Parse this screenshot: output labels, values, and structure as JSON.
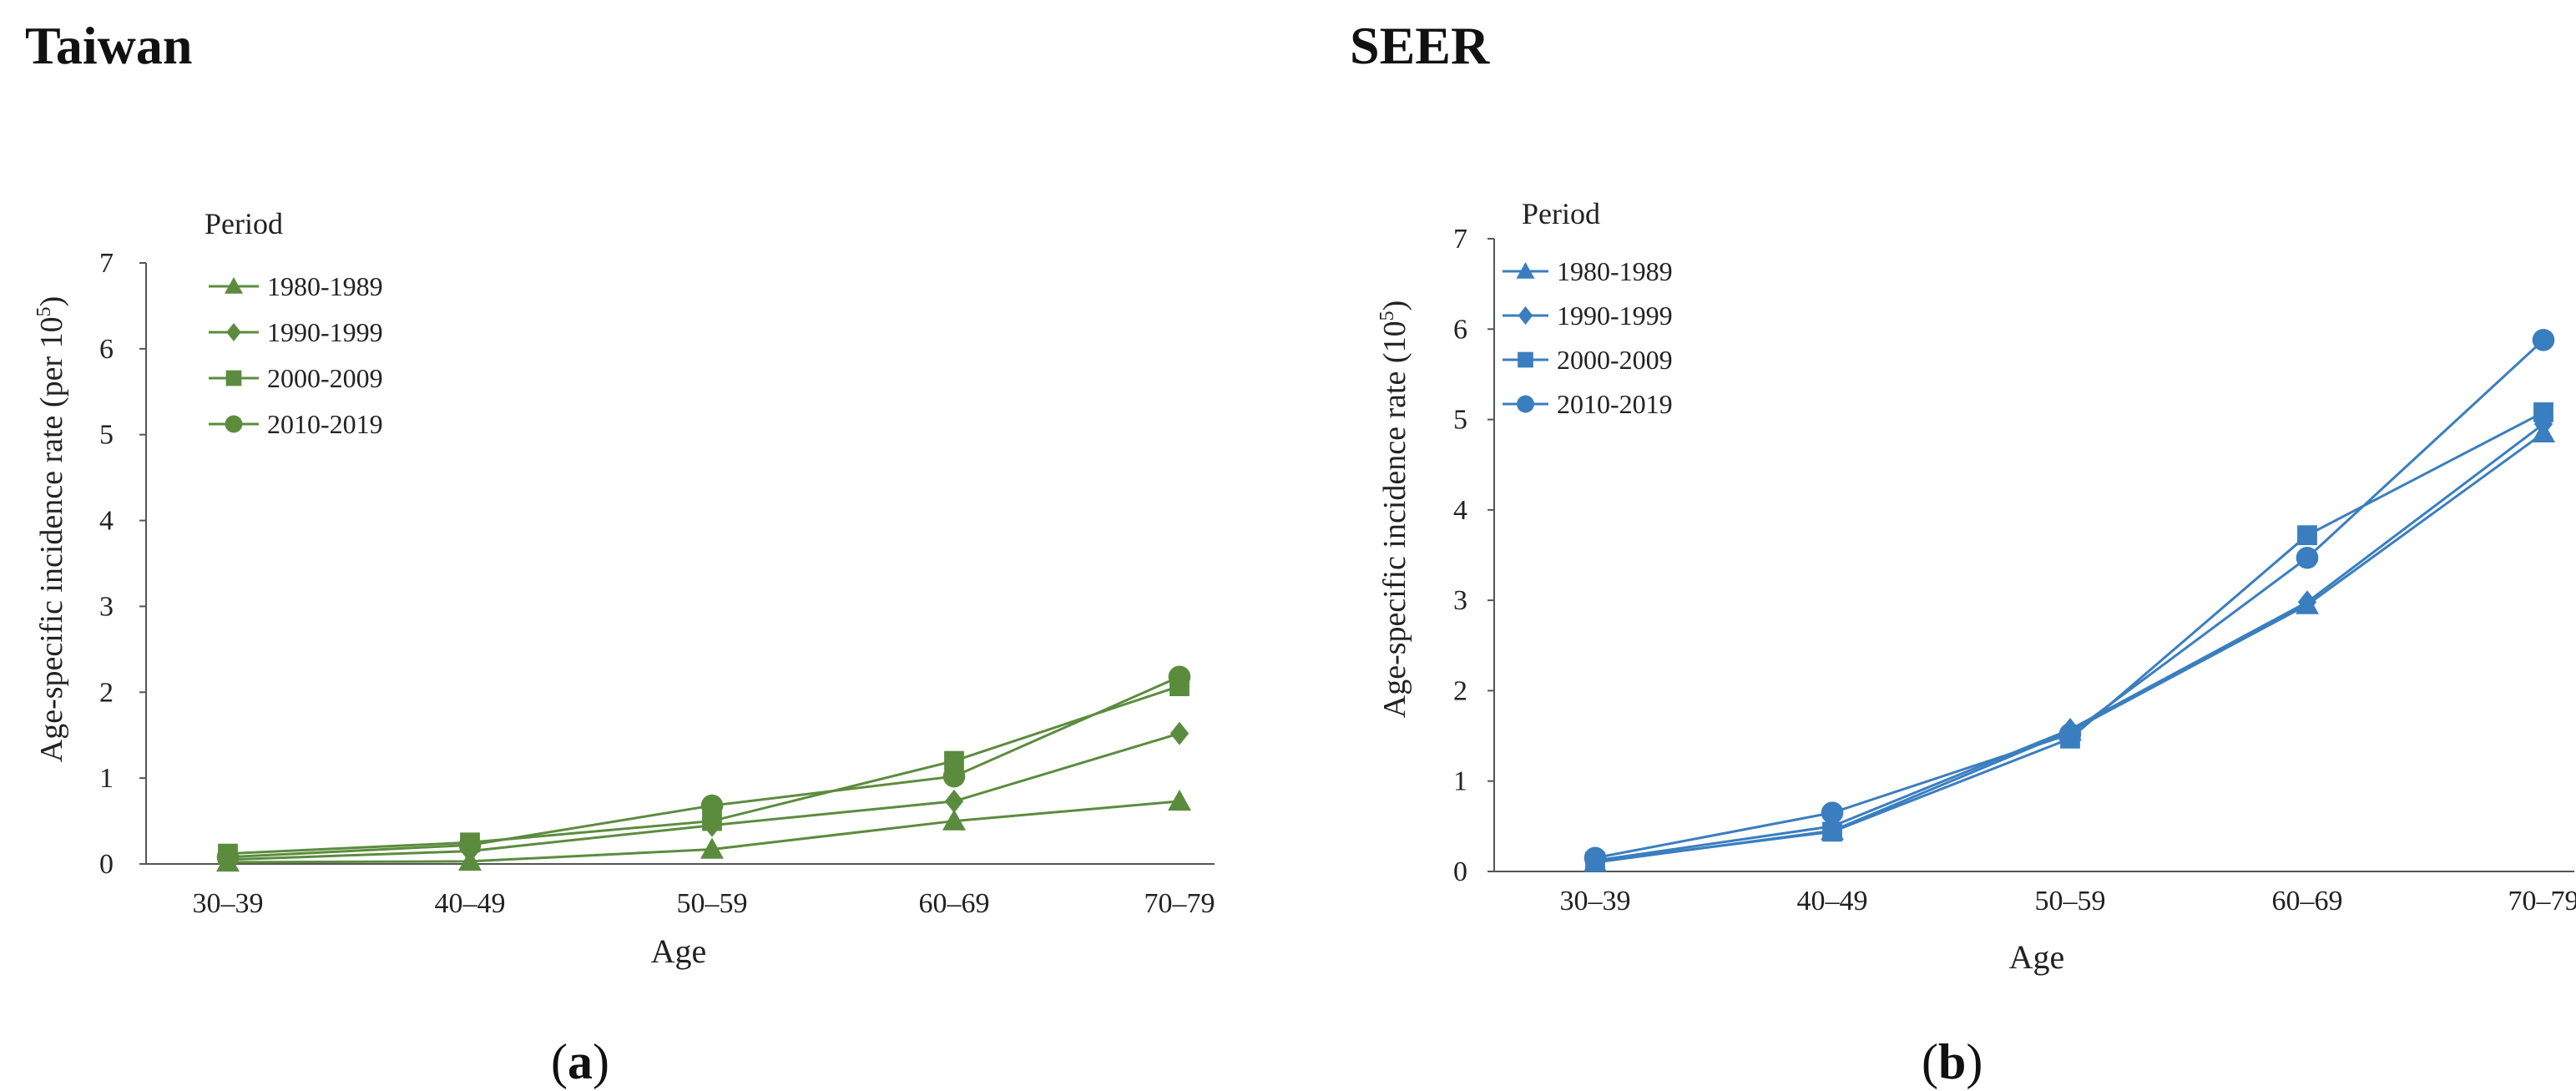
{
  "panels": [
    {
      "title": "Taiwan",
      "caption_letter": "a",
      "color": "#5b8c3e",
      "chart_data": {
        "type": "line",
        "categories": [
          "30–39",
          "40–49",
          "50–59",
          "60–69",
          "70–79"
        ],
        "xlabel": "Age",
        "ylabel": "Age-specific incidence rate (per 10",
        "ylabel_sup": "5",
        "ylabel_tail": ")",
        "ylim": [
          0,
          7
        ],
        "yticks": [
          0,
          1,
          2,
          3,
          4,
          5,
          6,
          7
        ],
        "grid": false,
        "legend_title": "Period",
        "legend_position": "top-left",
        "series": [
          {
            "name": "1980-1989",
            "marker": "triangle",
            "values": [
              0.02,
              0.03,
              0.17,
              0.5,
              0.73
            ]
          },
          {
            "name": "1990-1999",
            "marker": "diamond",
            "values": [
              0.05,
              0.15,
              0.45,
              0.73,
              1.52
            ]
          },
          {
            "name": "2000-2009",
            "marker": "square",
            "values": [
              0.12,
              0.25,
              0.5,
              1.2,
              2.07
            ]
          },
          {
            "name": "2010-2019",
            "marker": "circle",
            "values": [
              0.08,
              0.22,
              0.68,
              1.02,
              2.18
            ]
          }
        ]
      }
    },
    {
      "title": "SEER",
      "caption_letter": "b",
      "color": "#3a7ebf",
      "chart_data": {
        "type": "line",
        "categories": [
          "30–39",
          "40–49",
          "50–59",
          "60–69",
          "70–79"
        ],
        "xlabel": "Age",
        "ylabel": "Age-specific incidence rate (10",
        "ylabel_sup": "5",
        "ylabel_tail": ")",
        "ylim": [
          0,
          7
        ],
        "yticks": [
          0,
          1,
          2,
          3,
          4,
          5,
          6,
          7
        ],
        "grid": false,
        "legend_title": "Period",
        "legend_position": "top-left",
        "series": [
          {
            "name": "1980-1989",
            "marker": "triangle",
            "values": [
              0.1,
              0.45,
              1.55,
              2.95,
              4.85
            ]
          },
          {
            "name": "1990-1999",
            "marker": "diamond",
            "values": [
              0.12,
              0.5,
              1.57,
              2.98,
              4.95
            ]
          },
          {
            "name": "2000-2009",
            "marker": "square",
            "values": [
              0.11,
              0.44,
              1.47,
              3.72,
              5.08
            ]
          },
          {
            "name": "2010-2019",
            "marker": "circle",
            "values": [
              0.15,
              0.65,
              1.52,
              3.47,
              5.88
            ]
          }
        ]
      }
    }
  ]
}
